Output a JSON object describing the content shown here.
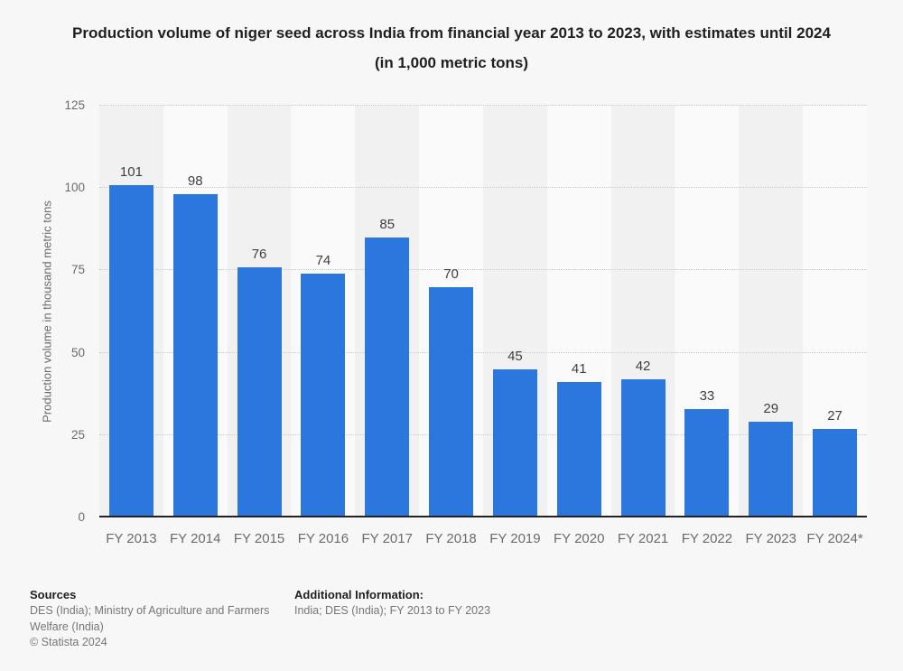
{
  "title": "Production volume of niger seed across India from financial year 2013 to 2023, with estimates until 2024 (in 1,000 metric tons)",
  "chart_data": {
    "type": "bar",
    "categories": [
      "FY 2013",
      "FY 2014",
      "FY 2015",
      "FY 2016",
      "FY 2017",
      "FY 2018",
      "FY 2019",
      "FY 2020",
      "FY 2021",
      "FY 2022",
      "FY 2023",
      "FY 2024*"
    ],
    "values": [
      101,
      98,
      76,
      74,
      85,
      70,
      45,
      41,
      42,
      33,
      29,
      27
    ],
    "title": "Production volume of niger seed across India from financial year 2013 to 2023, with estimates until 2024 (in 1,000 metric tons)",
    "xlabel": "",
    "ylabel": "Production volume in thousand metric tons",
    "ylim": [
      0,
      125
    ],
    "yticks": [
      0,
      25,
      50,
      75,
      100,
      125
    ],
    "grid": "horizontal-dotted",
    "legend": "none",
    "value_labels": true,
    "bar_color": "#2b77dd"
  },
  "colors": {
    "bar_accent": "#2b77dd",
    "page_background": "#f7f7f7",
    "stripe_dark": "#f1f1f1",
    "stripe_light": "#fafafa",
    "axis_line": "#222222",
    "gridline": "#c9c9c9"
  },
  "footer": {
    "sources_heading": "Sources",
    "sources_text": "DES (India); Ministry of Agriculture and Farmers Welfare (India)",
    "copyright": "© Statista 2024",
    "additional_heading": "Additional Information:",
    "additional_text": "India; DES (India); FY 2013 to FY 2023"
  }
}
